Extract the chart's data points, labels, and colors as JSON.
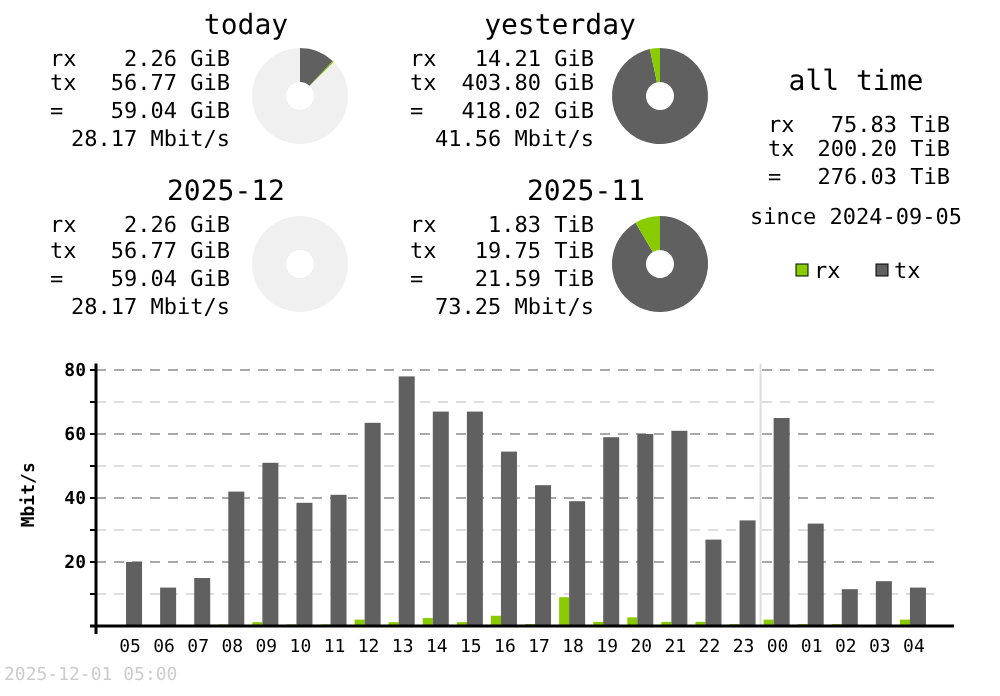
{
  "chart_data": [
    {
      "type": "donut",
      "title": "today",
      "categories": [
        null,
        null,
        null
      ],
      "values": [
        12,
        0.5,
        87.5
      ],
      "colors": [
        "#606060",
        "#88cc00",
        "#f0f0f0"
      ],
      "annotations": [
        "rx",
        "2.26 GiB",
        "tx",
        "56.77 GiB",
        "=",
        "59.04 GiB",
        "28.17 Mbit/s"
      ]
    },
    {
      "type": "donut",
      "title": "yesterday",
      "categories": [
        null,
        null
      ],
      "values": [
        96.6,
        3.4
      ],
      "colors": [
        "#606060",
        "#88cc00"
      ],
      "annotations": [
        "rx",
        "14.21 GiB",
        "tx",
        "403.80 GiB",
        "=",
        "418.02 GiB",
        "41.56 Mbit/s"
      ]
    },
    {
      "type": "other",
      "title": "all time",
      "annotations": [
        "rx",
        "75.83 TiB",
        "tx",
        "200.20 TiB",
        "=",
        "276.03 TiB",
        "since 2024-09-05"
      ]
    },
    {
      "type": "donut",
      "title": "2025-12",
      "categories": [
        null
      ],
      "values": [
        100
      ],
      "colors": [
        "#f0f0f0"
      ],
      "annotations": [
        "rx",
        "2.26 GiB",
        "tx",
        "56.77 GiB",
        "=",
        "59.04 GiB",
        "28.17 Mbit/s"
      ]
    },
    {
      "type": "donut",
      "title": "2025-11",
      "categories": [
        null,
        null
      ],
      "values": [
        91.5,
        8.5
      ],
      "colors": [
        "#606060",
        "#88cc00"
      ],
      "annotations": [
        "rx",
        "1.83 TiB",
        "tx",
        "19.75 TiB",
        "=",
        "21.59 TiB",
        "73.25 Mbit/s"
      ]
    },
    {
      "type": "bar",
      "ylabel": "Mbit/s",
      "categories": [
        "05",
        "06",
        "07",
        "08",
        "09",
        "10",
        "11",
        "12",
        "13",
        "14",
        "15",
        "16",
        "17",
        "18",
        "19",
        "20",
        "21",
        "22",
        "23",
        "00",
        "01",
        "02",
        "03",
        "04"
      ],
      "series": [
        {
          "name": "rx",
          "color": "#88cc00",
          "values": [
            0,
            0,
            0,
            0.5,
            1.2,
            0.5,
            0.5,
            2,
            1.2,
            2.5,
            1.2,
            3.2,
            0.6,
            9,
            1.3,
            2.7,
            1.3,
            1.3,
            0.6,
            2,
            0.6,
            0.6,
            0,
            2
          ]
        },
        {
          "name": "tx",
          "color": "#606060",
          "values": [
            20,
            12,
            15,
            42,
            51,
            38.5,
            41,
            63.5,
            78,
            67,
            67,
            54.5,
            44,
            39,
            59,
            60,
            61,
            27,
            33,
            65,
            32,
            11.5,
            14,
            12
          ]
        }
      ],
      "ylim": [
        0,
        82
      ],
      "yticks": [
        {
          "value": 10,
          "label": null
        },
        20,
        {
          "value": 30,
          "label": null
        },
        40,
        {
          "value": 50,
          "label": null
        },
        60,
        {
          "value": 70,
          "label": null
        },
        80
      ],
      "grid": "y",
      "legend": "top right",
      "ref_lines": [
        {
          "axis": "x",
          "value": "00",
          "color": "#dddddd"
        }
      ],
      "annotations": [
        "2025-12-01 05:00"
      ]
    }
  ]
}
